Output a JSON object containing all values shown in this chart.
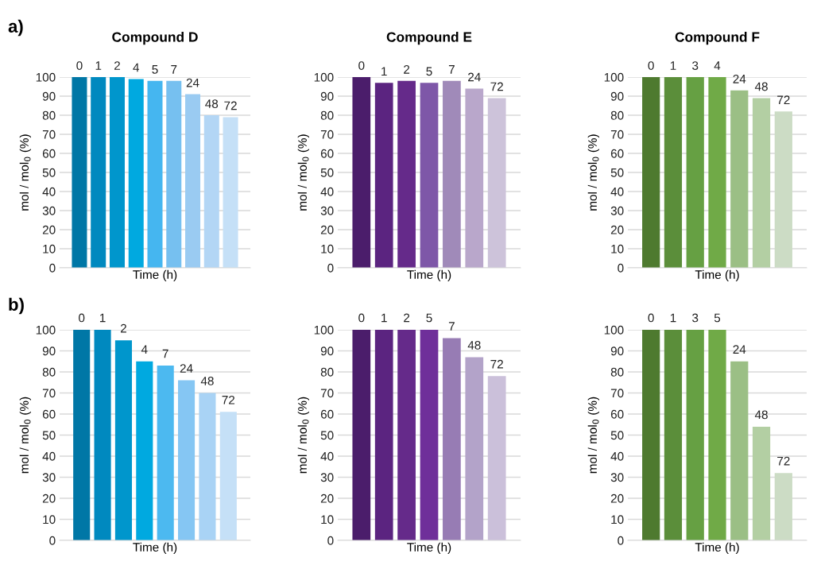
{
  "chart_data": [
    {
      "type": "bar",
      "title": "Compound D",
      "xlabel": "Time (h)",
      "ylabel": "mol / mol$_{0}$ (%)",
      "annotations": [
        "a)"
      ],
      "categories": [
        "0",
        "1",
        "2",
        "4",
        "5",
        "7",
        "24",
        "48",
        "72"
      ],
      "values": [
        100,
        100,
        100,
        99,
        98,
        98,
        91,
        80,
        79
      ],
      "colors": [
        "#0077a6",
        "#0089bf",
        "#0096cc",
        "#00a9e0",
        "#45b6f0",
        "#76c0f0",
        "#9acbf2",
        "#b3d6f5",
        "#c5e0f7"
      ],
      "ylim": [
        0,
        100
      ],
      "yticks": [
        0,
        10,
        20,
        30,
        40,
        50,
        60,
        70,
        80,
        90,
        100
      ],
      "grid": "y",
      "tick_labels": "y"
    },
    {
      "type": "bar",
      "title": "Compound E",
      "xlabel": "Time (h)",
      "ylabel": "mol / mol$_{0}$ (%)",
      "categories": [
        "0",
        "1",
        "2",
        "5",
        "7",
        "24",
        "72"
      ],
      "values": [
        100,
        97,
        98,
        97,
        98,
        94,
        89
      ],
      "colors": [
        "#4b1d6b",
        "#5b2480",
        "#652a8a",
        "#7e57a8",
        "#a08ab9",
        "#b9a7cb",
        "#cdc3da"
      ],
      "ylim": [
        0,
        100
      ],
      "yticks": [
        0,
        10,
        20,
        30,
        40,
        50,
        60,
        70,
        80,
        90,
        100
      ],
      "grid": "y",
      "tick_labels": "y"
    },
    {
      "type": "bar",
      "title": "Compound F",
      "xlabel": "Time (h)",
      "ylabel": "mol / mol$_{0}$ (%)",
      "categories": [
        "0",
        "1",
        "3",
        "4",
        "24",
        "48",
        "72"
      ],
      "values": [
        100,
        100,
        100,
        100,
        93,
        89,
        82
      ],
      "colors": [
        "#4e7a2f",
        "#5b8e3a",
        "#66a043",
        "#70aa47",
        "#9bbf85",
        "#b3cfa3",
        "#ccdcc5"
      ],
      "ylim": [
        0,
        100
      ],
      "yticks": [
        0,
        10,
        20,
        30,
        40,
        50,
        60,
        70,
        80,
        90,
        100
      ],
      "grid": "y",
      "tick_labels": "y"
    },
    {
      "type": "bar",
      "xlabel": "Time (h)",
      "ylabel": "mol / mol$_{0}$ (%)",
      "annotations": [
        "b)"
      ],
      "categories": [
        "0",
        "1",
        "2",
        "4",
        "7",
        "24",
        "48",
        "72"
      ],
      "values": [
        100,
        100,
        95,
        85,
        83,
        76,
        70,
        61
      ],
      "colors": [
        "#0077a6",
        "#0089bf",
        "#0096cc",
        "#00a9e0",
        "#4cb9f0",
        "#85c6f3",
        "#a9d3f5",
        "#c5e0f7"
      ],
      "ylim": [
        0,
        100
      ],
      "yticks": [
        0,
        10,
        20,
        30,
        40,
        50,
        60,
        70,
        80,
        90,
        100
      ],
      "grid": "y",
      "tick_labels": "y"
    },
    {
      "type": "bar",
      "xlabel": "Time (h)",
      "ylabel": "mol / mol$_{0}$ (%)",
      "categories": [
        "0",
        "1",
        "2",
        "5",
        "7",
        "48",
        "72"
      ],
      "values": [
        100,
        100,
        100,
        100,
        96,
        87,
        78
      ],
      "colors": [
        "#4b1d6b",
        "#5b2480",
        "#652a8a",
        "#6f2f9a",
        "#977cb4",
        "#b3a3c9",
        "#cbc0da"
      ],
      "ylim": [
        0,
        100
      ],
      "yticks": [
        0,
        10,
        20,
        30,
        40,
        50,
        60,
        70,
        80,
        90,
        100
      ],
      "grid": "y",
      "tick_labels": "y"
    },
    {
      "type": "bar",
      "xlabel": "Time (h)",
      "ylabel": "mol / mol$_{0}$ (%)",
      "categories": [
        "0",
        "1",
        "3",
        "5",
        "24",
        "48",
        "72"
      ],
      "values": [
        100,
        100,
        100,
        100,
        85,
        54,
        32
      ],
      "colors": [
        "#4e7a2f",
        "#5b8e3a",
        "#66a043",
        "#70aa47",
        "#9bbf85",
        "#b3cfa3",
        "#ccdcc5"
      ],
      "ylim": [
        0,
        100
      ],
      "yticks": [
        0,
        10,
        20,
        30,
        40,
        50,
        60,
        70,
        80,
        90,
        100
      ],
      "grid": "y",
      "tick_labels": "y"
    }
  ]
}
